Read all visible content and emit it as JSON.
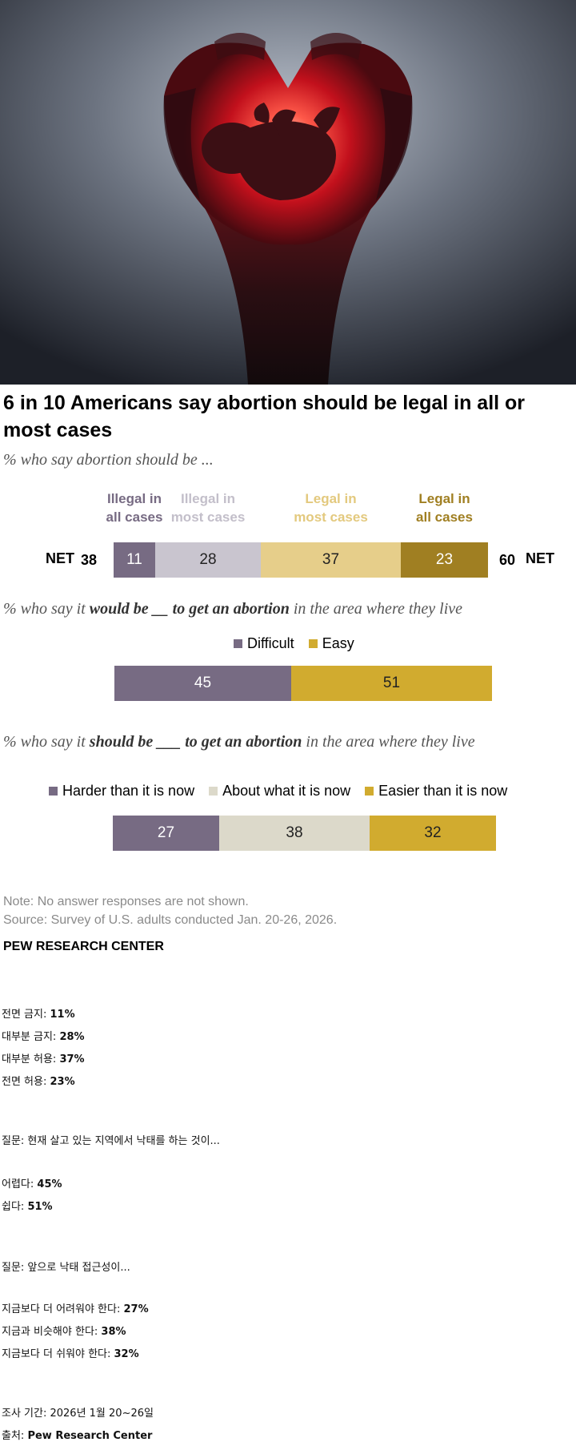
{
  "title": "6 in 10 Americans say abortion should be legal in all or most cases",
  "chart_data": [
    {
      "type": "bar",
      "subtitle": "% who say abortion should be ...",
      "categories": [
        "Illegal in all cases",
        "Illegal in most cases",
        "Legal in most cases",
        "Legal in all cases"
      ],
      "category_lines": [
        [
          "Illegal in",
          "all cases"
        ],
        [
          "Illegal in",
          "most cases"
        ],
        [
          "Legal in",
          "most cases"
        ],
        [
          "Legal in",
          "all cases"
        ]
      ],
      "values": [
        11,
        28,
        37,
        23
      ],
      "colors": [
        "#776b83",
        "#c9c5cf",
        "#e6ce8a",
        "#a07f22"
      ],
      "label_colors": [
        "#776b83",
        "#c3bfca",
        "#e3c97e",
        "#a07f22"
      ],
      "net_left": {
        "label": "NET",
        "value": 38
      },
      "net_right": {
        "label": "NET",
        "value": 60
      }
    },
    {
      "type": "bar",
      "subtitle_parts": [
        "% who say it ",
        "would be __ to get an abortion",
        " in the area where they live"
      ],
      "categories": [
        "Difficult",
        "Easy"
      ],
      "values": [
        45,
        51
      ],
      "colors": [
        "#776b83",
        "#d1ab2f"
      ]
    },
    {
      "type": "bar",
      "subtitle_parts": [
        "% who say it ",
        "should be ___ to get an abortion",
        " in the area where they live"
      ],
      "categories": [
        "Harder than it is now",
        "About what it is now",
        "Easier than it is now"
      ],
      "values": [
        27,
        38,
        32
      ],
      "colors": [
        "#776b83",
        "#dcd9ca",
        "#d1ab2f"
      ]
    }
  ],
  "notes": {
    "note": "Note: No answer responses are not shown.",
    "source": "Source: Survey of U.S. adults conducted Jan. 20-26, 2026.",
    "brand": "PEW RESEARCH CENTER"
  },
  "korean": {
    "group1": [
      {
        "label": "전면 금지: ",
        "value": "11%"
      },
      {
        "label": "대부분 금지: ",
        "value": "28%"
      },
      {
        "label": "대부분 허용: ",
        "value": "37%"
      },
      {
        "label": "전면 허용: ",
        "value": "23%"
      }
    ],
    "question1": "질문: 현재 살고 있는 지역에서 낙태를 하는 것이...",
    "group2": [
      {
        "label": "어렵다: ",
        "value": "45%"
      },
      {
        "label": "쉽다: ",
        "value": "51%"
      }
    ],
    "question2": "질문: 앞으로 낙태 접근성이...",
    "group3": [
      {
        "label": "지금보다 더 어려워야 한다: ",
        "value": "27%"
      },
      {
        "label": "지금과 비슷해야 한다: ",
        "value": "38%"
      },
      {
        "label": "지금보다 더 쉬워야 한다: ",
        "value": "32%"
      }
    ],
    "period": "조사 기간: 2026년 1월 20~26일",
    "source_label": "출처: ",
    "source_value": "Pew Research Center"
  }
}
